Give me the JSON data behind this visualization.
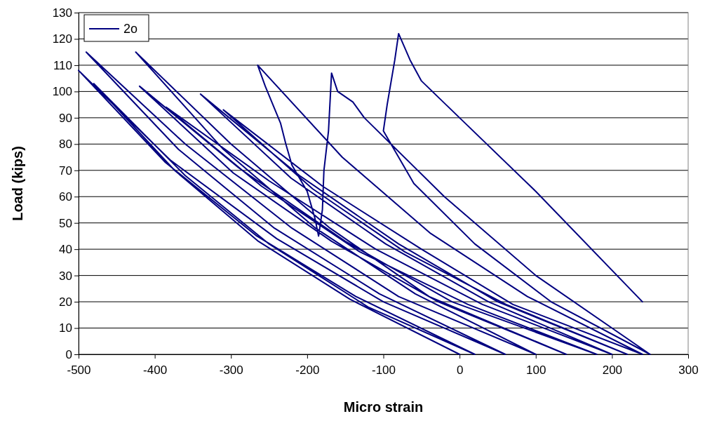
{
  "chart_data": {
    "type": "line",
    "xlabel": "Micro strain",
    "ylabel": "Load (kips)",
    "xlim": [
      -500,
      300
    ],
    "xticks": [
      -500,
      -400,
      -300,
      -200,
      -100,
      0,
      100,
      200,
      300
    ],
    "ylim": [
      0,
      130
    ],
    "yticks": [
      0,
      10,
      20,
      30,
      40,
      50,
      60,
      70,
      80,
      90,
      100,
      110,
      120,
      130
    ],
    "grid": "y",
    "legend": "top left",
    "marker": "none",
    "line_style": "solid",
    "series": [
      {
        "name": "2o",
        "color": "#000080",
        "x": [
          0,
          -144,
          -264,
          -374,
          -480,
          -360,
          -250,
          -120,
          20,
          -136,
          -266,
          -386,
          -500,
          -380,
          -240,
          -100,
          60,
          -105,
          -243,
          -369,
          -490,
          -360,
          -220,
          -80,
          100,
          -58,
          -189,
          -310,
          -425,
          -300,
          -170,
          -40,
          140,
          -28,
          -168,
          -297,
          -420,
          -290,
          -150,
          -10,
          180,
          11,
          -131,
          -260,
          -385,
          -250,
          -110,
          30,
          200,
          38,
          -97,
          -221,
          -340,
          -210,
          -80,
          50,
          220,
          61,
          -72,
          -193,
          -310,
          -180,
          -50,
          70,
          240,
          89,
          -38,
          -154,
          -265,
          -255,
          -245,
          -235,
          -228,
          -220,
          -200,
          -190,
          -185,
          -180,
          -178,
          -172,
          -170,
          -168,
          -160,
          -140,
          -125,
          -20,
          100,
          250,
          120,
          20,
          -60,
          -100,
          -95,
          -85,
          -80,
          -65,
          -50,
          0,
          100,
          240
        ],
        "values": [
          0,
          21,
          43,
          70,
          103,
          68,
          42,
          18,
          0,
          22,
          45,
          73,
          108,
          74,
          44,
          20,
          0,
          23,
          48,
          78,
          115,
          80,
          48,
          22,
          0,
          23,
          48,
          78,
          115,
          80,
          48,
          22,
          0,
          20,
          43,
          69,
          102,
          71,
          43,
          20,
          0,
          19,
          39,
          64,
          94,
          66,
          40,
          19,
          0,
          20,
          42,
          67,
          99,
          68,
          42,
          20,
          0,
          19,
          39,
          63,
          93,
          64,
          40,
          19,
          0,
          22,
          46,
          75,
          110,
          102,
          95,
          88,
          80,
          72,
          62,
          52,
          45,
          55,
          70,
          85,
          96,
          107,
          100,
          96,
          90,
          60,
          30,
          0,
          20,
          42,
          65,
          85,
          95,
          112,
          122,
          112,
          104,
          90,
          62,
          20
        ]
      }
    ]
  }
}
